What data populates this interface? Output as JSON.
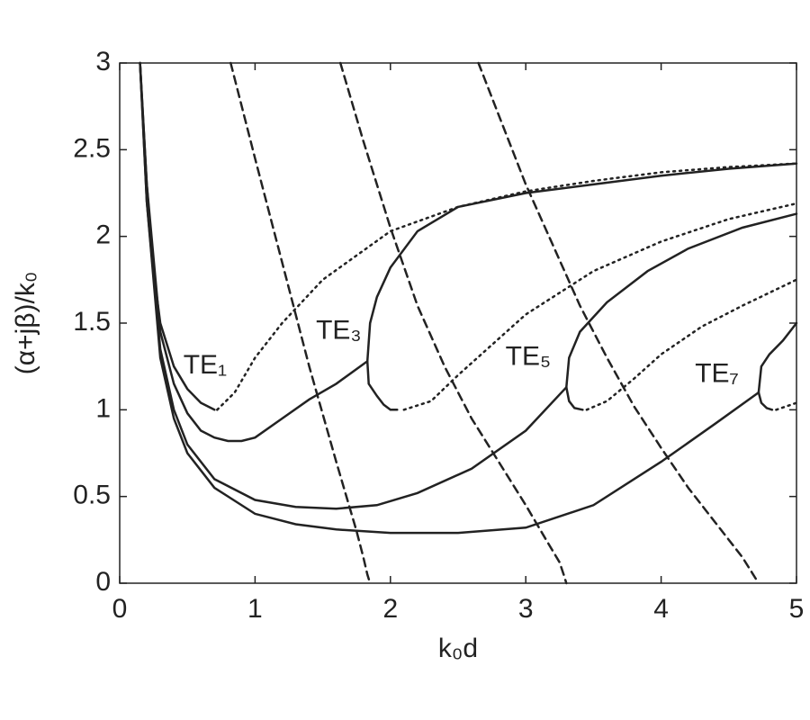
{
  "chart_data": {
    "type": "line",
    "xlabel": "k₀d",
    "ylabel": "(α+jβ)/k₀",
    "xlim": [
      0,
      5
    ],
    "ylim": [
      0,
      3
    ],
    "xticks": [
      0,
      1,
      2,
      3,
      4,
      5
    ],
    "yticks": [
      0,
      0.5,
      1,
      1.5,
      2,
      2.5,
      3
    ],
    "annotations": [
      "TE₁",
      "TE₃",
      "TE₅",
      "TE₇"
    ],
    "series": [
      {
        "color": "#222",
        "style": "solid",
        "x": [
          0.15,
          0.2,
          0.25,
          0.3,
          0.4,
          0.5,
          0.6,
          0.7
        ],
        "values": [
          3,
          2.3,
          1.8,
          1.5,
          1.25,
          1.12,
          1.04,
          1.0
        ]
      },
      {
        "color": "#222",
        "style": "dotted",
        "x": [
          0.72,
          0.85,
          1,
          1.2,
          1.5,
          2,
          2.5,
          3,
          3.5,
          4,
          4.5,
          5
        ],
        "values": [
          1.0,
          1.1,
          1.3,
          1.5,
          1.75,
          2.03,
          2.17,
          2.26,
          2.32,
          2.37,
          2.4,
          2.42
        ]
      },
      {
        "color": "#222",
        "style": "solid",
        "x": [
          0.15,
          0.2,
          0.3,
          0.4,
          0.5,
          0.6,
          0.7,
          0.8,
          0.9,
          1.0,
          1.2,
          1.4,
          1.6,
          1.83
        ],
        "values": [
          3,
          2.3,
          1.45,
          1.15,
          0.98,
          0.88,
          0.84,
          0.82,
          0.82,
          0.84,
          0.95,
          1.06,
          1.15,
          1.28
        ]
      },
      {
        "color": "#222",
        "style": "solid",
        "x": [
          1.83,
          1.85,
          1.9,
          2.0,
          2.2,
          2.5,
          3,
          3.5,
          4,
          4.5,
          5
        ],
        "values": [
          1.28,
          1.5,
          1.65,
          1.82,
          2.03,
          2.17,
          2.25,
          2.3,
          2.35,
          2.39,
          2.42
        ]
      },
      {
        "color": "#222",
        "style": "solid",
        "x": [
          1.83,
          1.84,
          1.9,
          1.95,
          2.0,
          2.05
        ],
        "values": [
          1.28,
          1.15,
          1.08,
          1.03,
          1.0,
          1.0
        ]
      },
      {
        "color": "#222",
        "style": "dotted",
        "x": [
          2.1,
          2.3,
          2.5,
          3,
          3.5,
          4,
          4.5,
          5
        ],
        "values": [
          1.0,
          1.05,
          1.2,
          1.55,
          1.8,
          1.97,
          2.1,
          2.19
        ]
      },
      {
        "color": "#222",
        "style": "solid",
        "x": [
          0.15,
          0.2,
          0.3,
          0.4,
          0.5,
          0.7,
          1.0,
          1.3,
          1.6,
          1.9,
          2.2,
          2.6,
          3,
          3.3
        ],
        "values": [
          3,
          2.2,
          1.35,
          1.0,
          0.8,
          0.6,
          0.48,
          0.44,
          0.43,
          0.45,
          0.52,
          0.66,
          0.88,
          1.13
        ]
      },
      {
        "color": "#222",
        "style": "solid",
        "x": [
          3.3,
          3.32,
          3.4,
          3.6,
          3.9,
          4.2,
          4.6,
          5
        ],
        "values": [
          1.13,
          1.3,
          1.45,
          1.62,
          1.8,
          1.93,
          2.05,
          2.13
        ]
      },
      {
        "color": "#222",
        "style": "solid",
        "x": [
          3.3,
          3.32,
          3.36,
          3.42
        ],
        "values": [
          1.13,
          1.05,
          1.01,
          1.0
        ]
      },
      {
        "color": "#222",
        "style": "dotted",
        "x": [
          3.45,
          3.6,
          3.8,
          4,
          4.3,
          4.6,
          5
        ],
        "values": [
          1.0,
          1.05,
          1.18,
          1.32,
          1.48,
          1.6,
          1.75
        ]
      },
      {
        "color": "#222",
        "style": "solid",
        "x": [
          0.15,
          0.2,
          0.3,
          0.4,
          0.5,
          0.7,
          1,
          1.3,
          1.6,
          2,
          2.5,
          3,
          3.5,
          4,
          4.4,
          4.72
        ],
        "values": [
          3,
          2.2,
          1.3,
          0.95,
          0.75,
          0.55,
          0.4,
          0.34,
          0.31,
          0.29,
          0.29,
          0.32,
          0.45,
          0.7,
          0.92,
          1.1
        ]
      },
      {
        "color": "#222",
        "style": "solid",
        "x": [
          4.72,
          4.74,
          4.8,
          4.9,
          5
        ],
        "values": [
          1.1,
          1.25,
          1.32,
          1.4,
          1.5
        ]
      },
      {
        "color": "#222",
        "style": "solid",
        "x": [
          4.72,
          4.74,
          4.78,
          4.82
        ],
        "values": [
          1.1,
          1.04,
          1.01,
          1.0
        ]
      },
      {
        "color": "#222",
        "style": "dotted",
        "x": [
          4.85,
          5
        ],
        "values": [
          1.0,
          1.04
        ]
      },
      {
        "color": "#222",
        "style": "dashed",
        "x": [
          0.82,
          1.0,
          1.2,
          1.4,
          1.6,
          1.75,
          1.8,
          1.83,
          1.85
        ],
        "values": [
          3,
          2.45,
          1.85,
          1.25,
          0.7,
          0.3,
          0.15,
          0.05,
          0
        ]
      },
      {
        "color": "#222",
        "style": "dashed",
        "x": [
          1.63,
          1.8,
          2.0,
          2.2,
          2.4,
          2.6,
          2.8,
          3.0,
          3.15,
          3.25,
          3.28,
          3.3
        ],
        "values": [
          3,
          2.55,
          2.05,
          1.6,
          1.25,
          0.95,
          0.7,
          0.45,
          0.25,
          0.12,
          0.05,
          0
        ]
      },
      {
        "color": "#222",
        "style": "dashed",
        "x": [
          2.65,
          2.8,
          3.0,
          3.2,
          3.4,
          3.6,
          3.8,
          4.0,
          4.2,
          4.4,
          4.6,
          4.68,
          4.72
        ],
        "values": [
          3,
          2.7,
          2.3,
          1.95,
          1.6,
          1.3,
          1.02,
          0.78,
          0.55,
          0.35,
          0.15,
          0.05,
          0
        ]
      }
    ]
  }
}
